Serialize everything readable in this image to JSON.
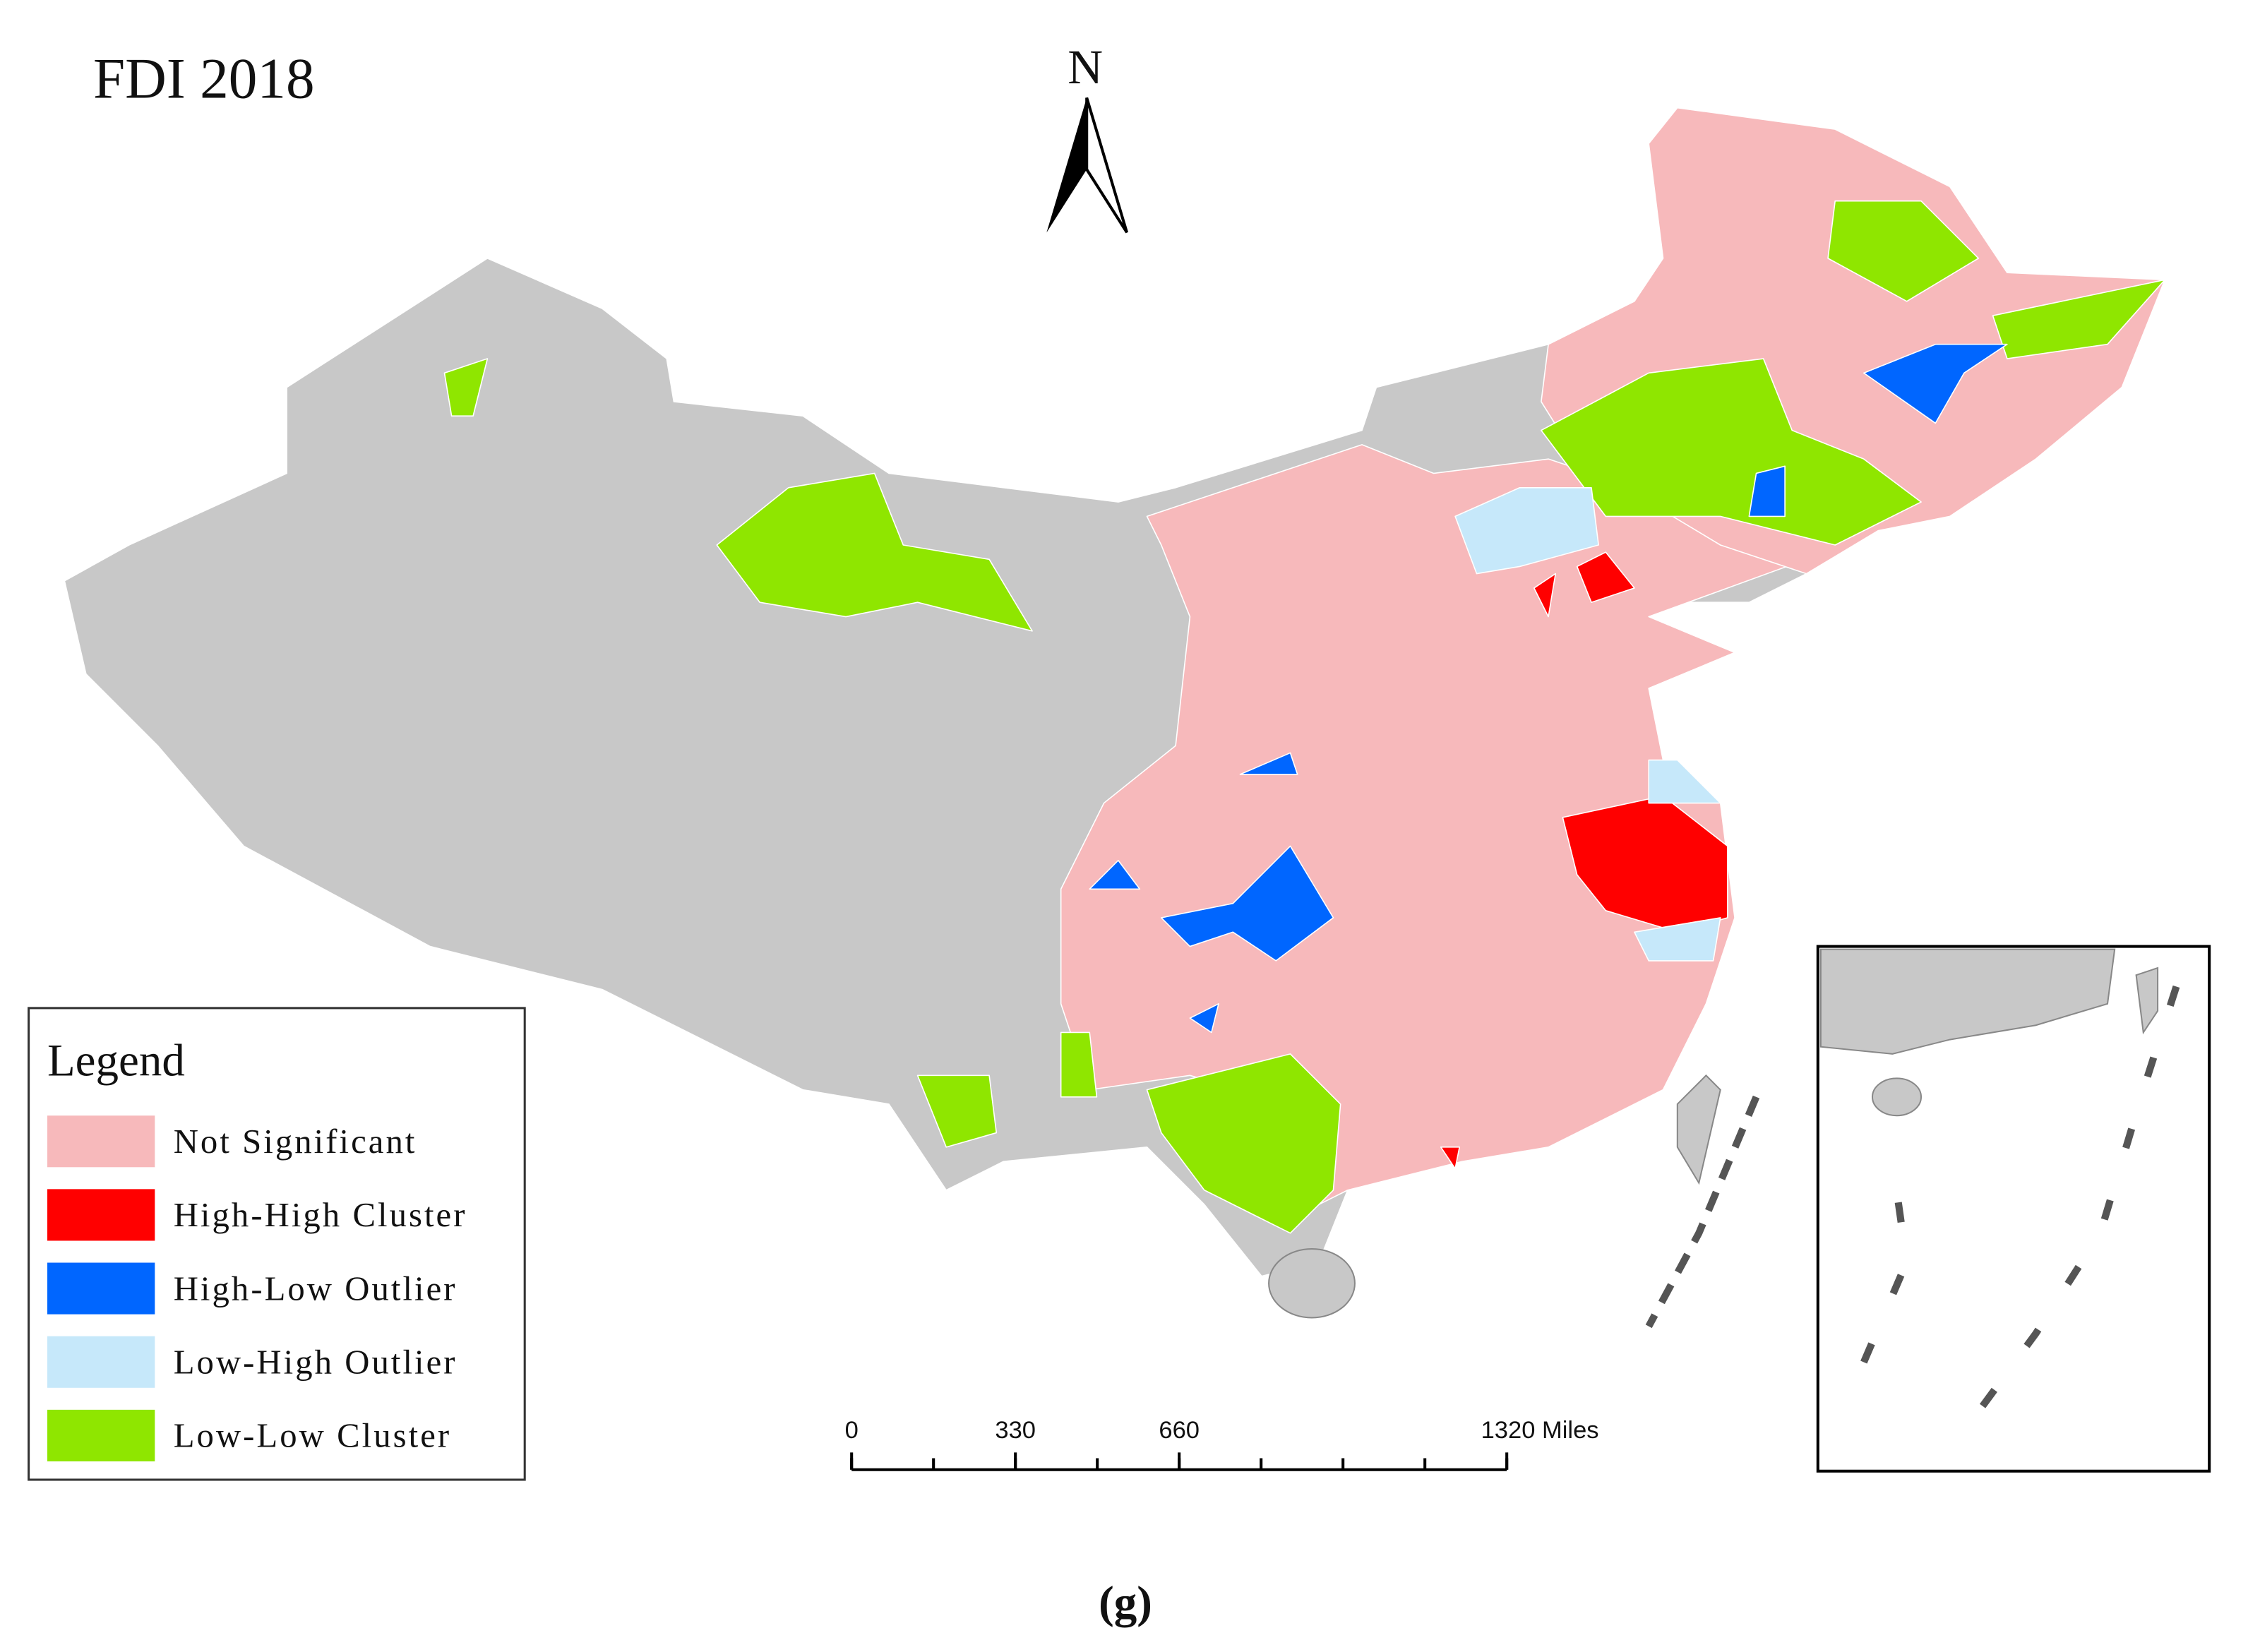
{
  "title": "FDI 2018",
  "north_arrow": "N",
  "legend": {
    "title": "Legend",
    "items": [
      {
        "label": "Not Significant",
        "color": "#f7b9bb"
      },
      {
        "label": "High-High Cluster",
        "color": "#ff0000"
      },
      {
        "label": "High-Low Outlier",
        "color": "#0066ff"
      },
      {
        "label": "Low-High Outlier",
        "color": "#c6e8fa"
      },
      {
        "label": "Low-Low Cluster",
        "color": "#8fe600"
      }
    ]
  },
  "scale_bar": {
    "range": [
      0,
      1320
    ],
    "ticks": [
      0,
      330,
      660,
      {
        "value": 1320,
        "label": "1320 Miles"
      }
    ]
  },
  "caption": "(g)"
}
